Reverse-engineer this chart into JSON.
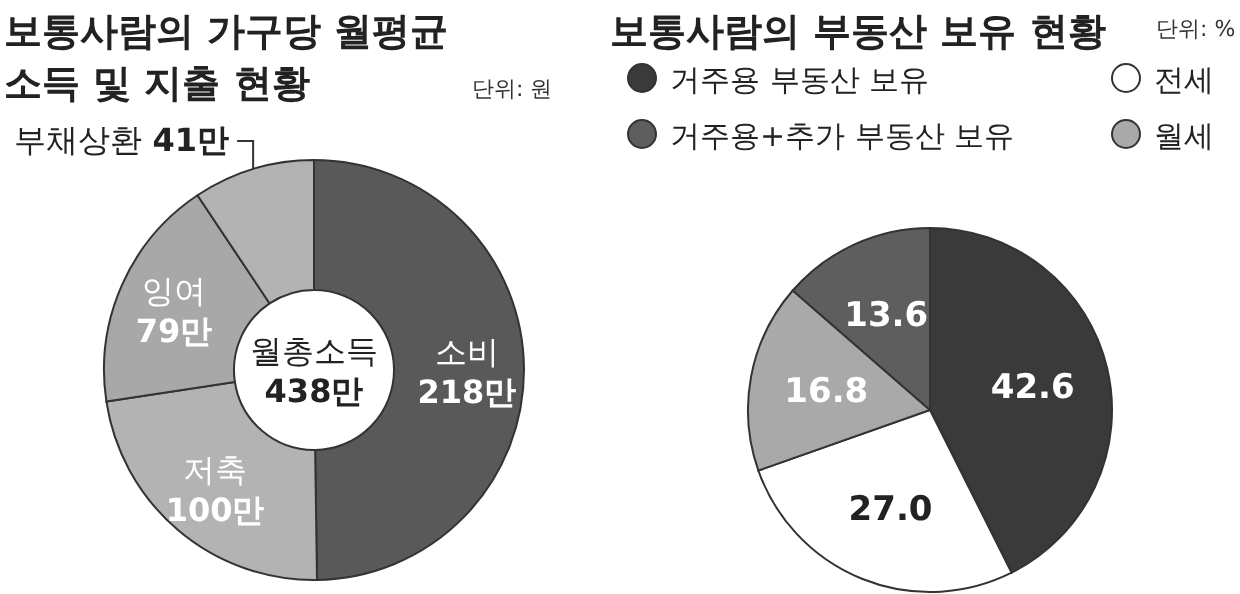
{
  "chart_data": [
    {
      "type": "donut",
      "title": "보통사람의 가구당 월평균\n소득 및 지출 현황",
      "subtitle": "단위: 원",
      "categories": [
        "소비",
        "저축",
        "잉여",
        "부채상환"
      ],
      "values": [
        218,
        100,
        79,
        41
      ],
      "value_labels": [
        "218만",
        "100만",
        "79만",
        "41만"
      ],
      "colors": [
        "#595959",
        "#b3b3b3",
        "#a8a8a8",
        "#b3b3b3"
      ],
      "annotations": [
        "월총소득",
        "438만"
      ],
      "legend": false
    },
    {
      "type": "pie",
      "title": "보통사람의 부동산 보유 현황",
      "subtitle": "단위: %",
      "categories": [
        "거주용 부동산 보유",
        "전세",
        "월세",
        "거주용+추가 부동산 보유"
      ],
      "values": [
        42.6,
        27.0,
        16.8,
        13.6
      ],
      "value_labels": [
        "42.6",
        "27.0",
        "16.8",
        "13.6"
      ],
      "colors": [
        "#3a3a3a",
        "#ffffff",
        "#a9a9a9",
        "#5e5e5e"
      ],
      "legend": "top"
    }
  ]
}
